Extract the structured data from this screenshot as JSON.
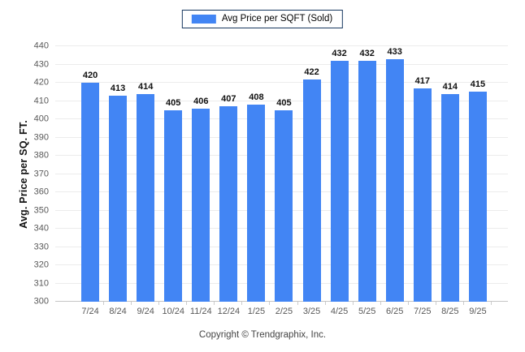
{
  "legend": {
    "label": "Avg Price per SQFT (Sold)",
    "swatch_color": "#4285f4"
  },
  "chart_data": {
    "type": "bar",
    "title": "",
    "series_name": "Avg Price per SQFT (Sold)",
    "categories": [
      "7/24",
      "8/24",
      "9/24",
      "10/24",
      "11/24",
      "12/24",
      "1/25",
      "2/25",
      "3/25",
      "4/25",
      "5/25",
      "6/25",
      "7/25",
      "8/25",
      "9/25"
    ],
    "values": [
      420,
      413,
      414,
      405,
      406,
      407,
      408,
      405,
      422,
      432,
      432,
      433,
      417,
      414,
      415
    ],
    "xlabel": "",
    "ylabel": "Avg. Price per SQ. FT.",
    "ylim": [
      300,
      440
    ],
    "ytick_step": 10,
    "grid": true,
    "legend_position": "top",
    "bar_color": "#4285f4",
    "data_labels": true
  },
  "footer": {
    "copyright": "Copyright © Trendgraphix, Inc."
  },
  "colors": {
    "background": "#ffffff",
    "bar": "#4285f4",
    "gridline": "#ececec",
    "axis_line": "#c6c6c6",
    "tick_text": "#595959",
    "value_text": "#111111",
    "legend_border": "#17375e"
  }
}
